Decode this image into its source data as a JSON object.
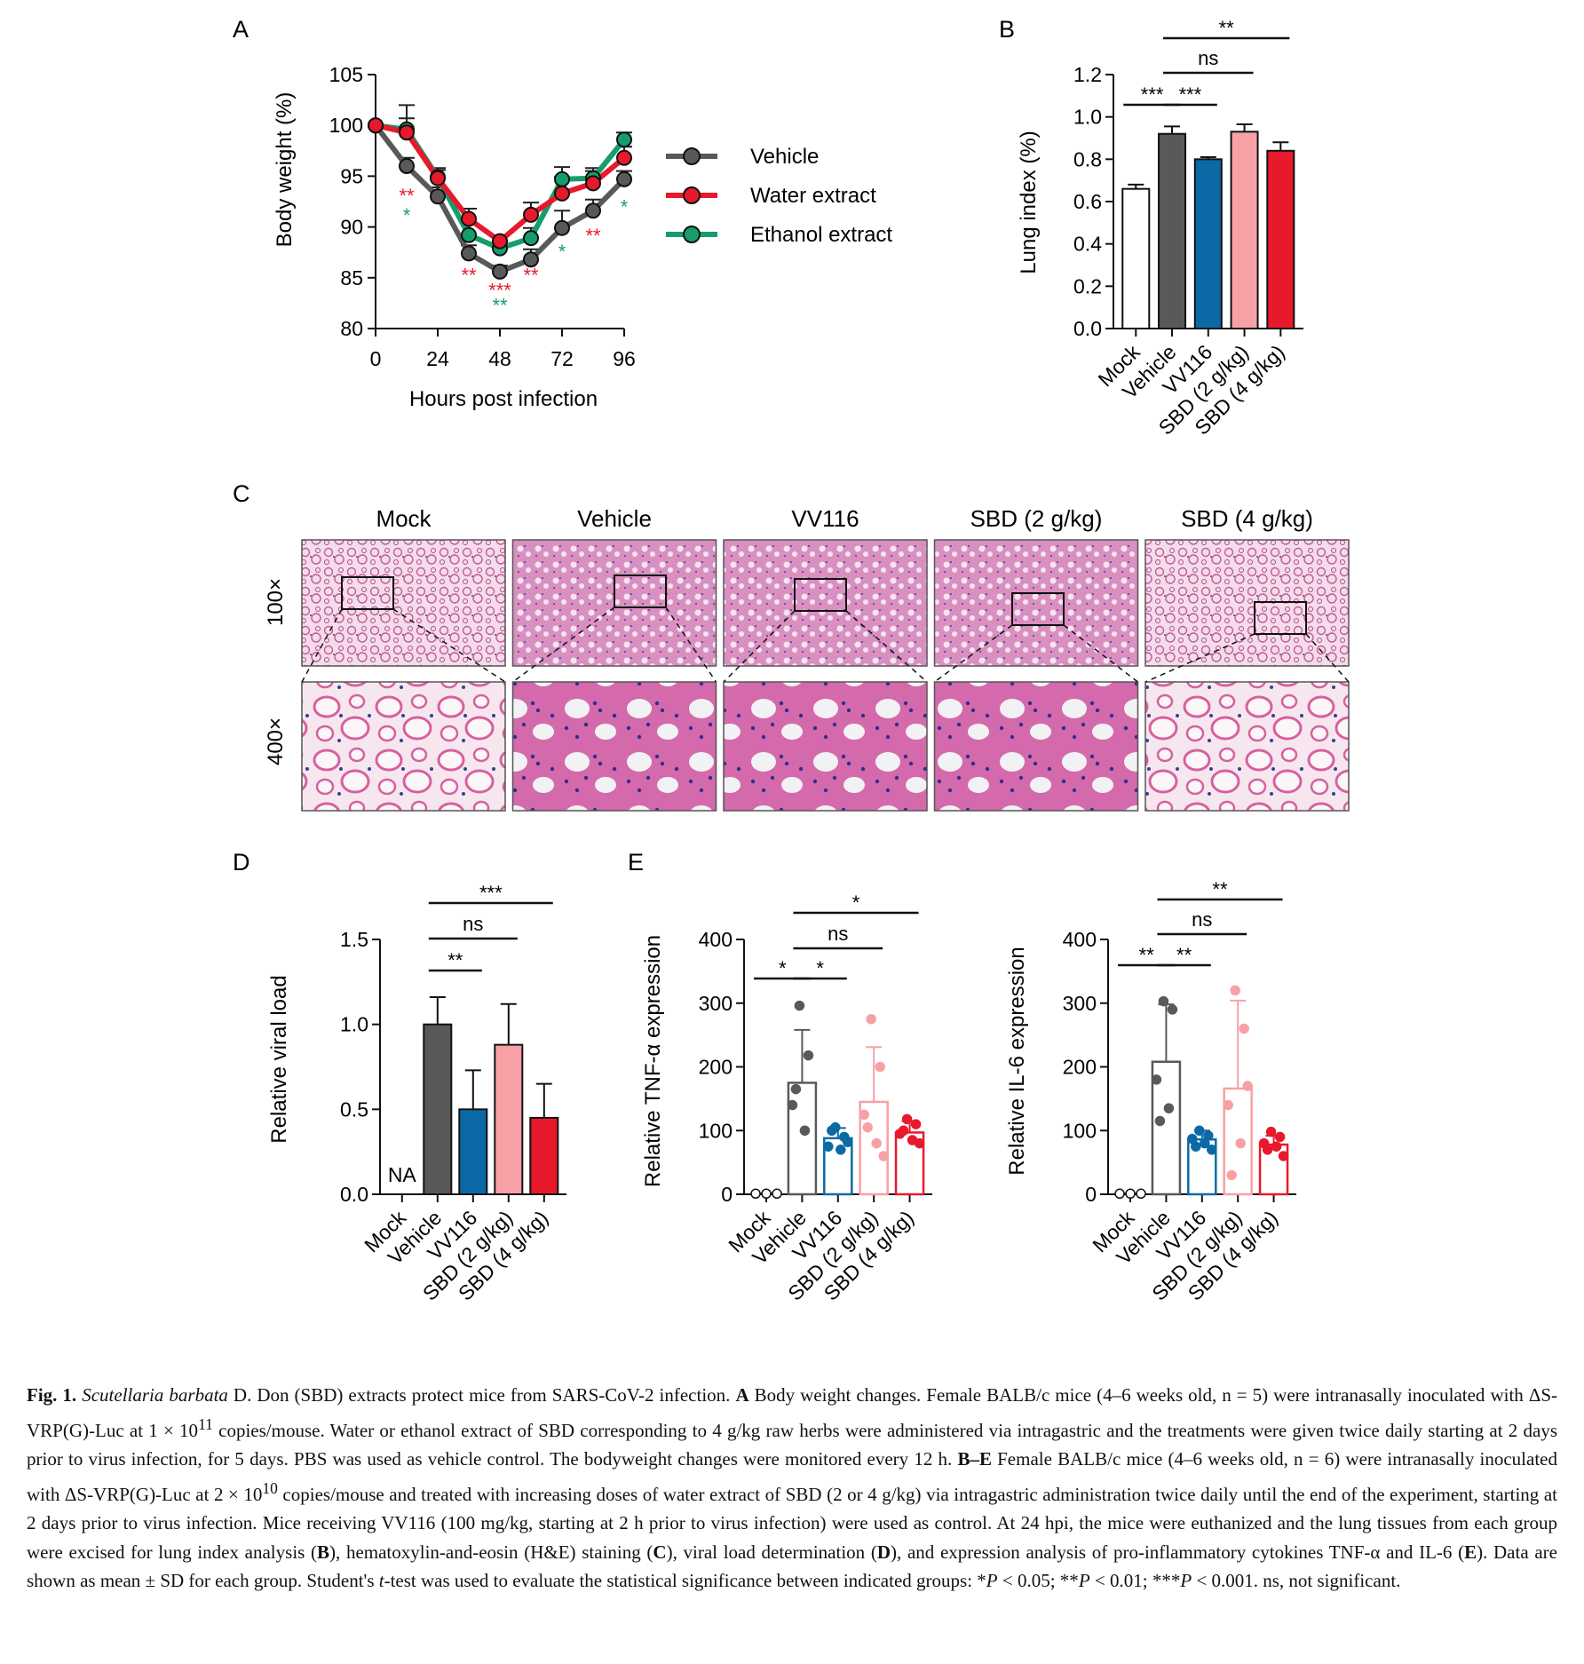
{
  "figure": {
    "panels": [
      {
        "letter": "A",
        "chart_data": {
          "type": "line",
          "xlabel": "Hours post infection",
          "ylabel": "Body weight (%)",
          "xlim": [
            0,
            96
          ],
          "ylim": [
            80,
            105
          ],
          "xticks": [
            0,
            24,
            48,
            72,
            96
          ],
          "yticks": [
            80,
            85,
            90,
            95,
            100,
            105
          ],
          "legend_position": "right",
          "x": [
            0,
            12,
            24,
            36,
            48,
            60,
            72,
            84,
            96
          ],
          "series": [
            {
              "name": "Vehicle",
              "color": "#595959",
              "values": [
                100,
                96.0,
                93.0,
                87.4,
                85.6,
                86.8,
                89.9,
                91.6,
                94.7
              ],
              "error": [
                0,
                0.8,
                0.9,
                0.8,
                0.6,
                1.0,
                1.7,
                1.1,
                0.8
              ]
            },
            {
              "name": "Water extract",
              "color": "#e8192c",
              "values": [
                100,
                99.3,
                94.8,
                90.8,
                88.6,
                91.2,
                93.3,
                94.3,
                96.8
              ],
              "error": [
                0,
                1.4,
                0.8,
                1.0,
                0.5,
                1.2,
                1.6,
                1.5,
                1.1
              ]
            },
            {
              "name": "Ethanol extract",
              "color": "#159e6b",
              "values": [
                100,
                99.6,
                94.9,
                89.2,
                87.9,
                88.9,
                94.7,
                94.8,
                98.6
              ],
              "error": [
                0,
                2.4,
                0.9,
                1.6,
                0.6,
                1.0,
                1.2,
                0.7,
                0.7
              ]
            }
          ],
          "annotations": [
            {
              "x": 12,
              "text": "**",
              "color": "#e8192c",
              "y_value": 92.4
            },
            {
              "x": 12,
              "text": "*",
              "color": "#159e6b",
              "y_value": 90.5
            },
            {
              "x": 36,
              "text": "**",
              "color": "#e8192c",
              "y_value": 84.6
            },
            {
              "x": 48,
              "text": "***",
              "color": "#e8192c",
              "y_value": 83.1
            },
            {
              "x": 48,
              "text": "**",
              "color": "#159e6b",
              "y_value": 81.6
            },
            {
              "x": 60,
              "text": "**",
              "color": "#e8192c",
              "y_value": 84.6
            },
            {
              "x": 72,
              "text": "*",
              "color": "#159e6b",
              "y_value": 86.9
            },
            {
              "x": 84,
              "text": "**",
              "color": "#e8192c",
              "y_value": 88.5
            },
            {
              "x": 96,
              "text": "*",
              "color": "#159e6b",
              "y_value": 91.3
            }
          ]
        }
      },
      {
        "letter": "B",
        "chart_data": {
          "type": "bar",
          "ylabel": "Lung index (%)",
          "ylim": [
            0,
            1.2
          ],
          "yticks": [
            "0.0",
            "0.2",
            "0.4",
            "0.6",
            "0.8",
            "1.0",
            "1.2"
          ],
          "categories": [
            "Mock",
            "Vehicle",
            "VV116",
            "SBD (2 g/kg)",
            "SBD (4 g/kg)"
          ],
          "values": [
            0.66,
            0.92,
            0.8,
            0.93,
            0.84
          ],
          "error": [
            0.02,
            0.035,
            0.01,
            0.035,
            0.04
          ],
          "bar_colors": [
            "#ffffff",
            "#595959",
            "#0b6aa6",
            "#f7a1a6",
            "#e8192c"
          ],
          "significance": [
            {
              "from": 0,
              "to": 1,
              "text": "***"
            },
            {
              "from": 1,
              "to": 2,
              "text": "***"
            },
            {
              "from": 1,
              "to": 3,
              "text": "ns"
            },
            {
              "from": 1,
              "to": 4,
              "text": "**"
            }
          ]
        }
      },
      {
        "letter": "C",
        "columns": [
          "Mock",
          "Vehicle",
          "VV116",
          "SBD (2 g/kg)",
          "SBD (4 g/kg)"
        ],
        "rows": [
          "100×",
          "400×"
        ]
      },
      {
        "letter": "D",
        "chart_data": {
          "type": "bar",
          "ylabel": "Relative viral load",
          "ylim": [
            0,
            1.5
          ],
          "yticks": [
            "0.0",
            "0.5",
            "1.0",
            "1.5"
          ],
          "categories": [
            "Mock",
            "Vehicle",
            "VV116",
            "SBD (2 g/kg)",
            "SBD (4 g/kg)"
          ],
          "values": [
            null,
            1.0,
            0.5,
            0.88,
            0.45
          ],
          "error": [
            0,
            0.16,
            0.23,
            0.24,
            0.2
          ],
          "bar_colors": [
            "#ffffff",
            "#595959",
            "#0b6aa6",
            "#f7a1a6",
            "#e8192c"
          ],
          "na_label": "NA",
          "significance": [
            {
              "from": 1,
              "to": 2,
              "text": "**"
            },
            {
              "from": 1,
              "to": 3,
              "text": "ns"
            },
            {
              "from": 1,
              "to": 4,
              "text": "***"
            }
          ]
        }
      },
      {
        "letter": "E",
        "chart_data": [
          {
            "type": "bar",
            "ylabel": "Relative TNF-α expression",
            "ylim": [
              0,
              400
            ],
            "yticks": [
              "0",
              "100",
              "200",
              "300",
              "400"
            ],
            "categories": [
              "Mock",
              "Vehicle",
              "VV116",
              "SBD (2 g/kg)",
              "SBD (4 g/kg)"
            ],
            "values": [
              1,
              175,
              88,
              145,
              97
            ],
            "error": [
              0,
              83,
              16,
              86,
              18
            ],
            "bar_colors": [
              "#111111",
              "#595959",
              "#0b6aa6",
              "#f7a1a6",
              "#e8192c"
            ],
            "points": [
              [
                1,
                1,
                1
              ],
              [
                296,
                218,
                140,
                100,
                165
              ],
              [
                105,
                90,
                75,
                70,
                100,
                82
              ],
              [
                275,
                200,
                125,
                80,
                105,
                60
              ],
              [
                118,
                110,
                95,
                85,
                100,
                80
              ]
            ],
            "significance": [
              {
                "from": 0,
                "to": 1,
                "text": "*"
              },
              {
                "from": 1,
                "to": 2,
                "text": "*"
              },
              {
                "from": 1,
                "to": 3,
                "text": "ns"
              },
              {
                "from": 1,
                "to": 4,
                "text": "*"
              }
            ]
          },
          {
            "type": "bar",
            "ylabel": "Relative IL-6 expression",
            "ylim": [
              0,
              400
            ],
            "yticks": [
              "0",
              "100",
              "200",
              "300",
              "400"
            ],
            "categories": [
              "Mock",
              "Vehicle",
              "VV116",
              "SBD (2 g/kg)",
              "SBD (4 g/kg)"
            ],
            "values": [
              1,
              208,
              86,
              166,
              78
            ],
            "error": [
              0,
              90,
              14,
              138,
              14
            ],
            "bar_colors": [
              "#111111",
              "#595959",
              "#0b6aa6",
              "#f7a1a6",
              "#e8192c"
            ],
            "points": [
              [
                1,
                1,
                1
              ],
              [
                303,
                290,
                180,
                135,
                115
              ],
              [
                100,
                92,
                87,
                80,
                75,
                70
              ],
              [
                320,
                260,
                140,
                80,
                30,
                170
              ],
              [
                98,
                90,
                80,
                75,
                70,
                60
              ]
            ],
            "significance": [
              {
                "from": 0,
                "to": 1,
                "text": "**"
              },
              {
                "from": 1,
                "to": 2,
                "text": "**"
              },
              {
                "from": 1,
                "to": 3,
                "text": "ns"
              },
              {
                "from": 1,
                "to": 4,
                "text": "**"
              }
            ]
          }
        ]
      }
    ]
  },
  "caption": {
    "label": "Fig. 1.",
    "species": "Scutellaria barbata",
    "p1": " D. Don (SBD) extracts protect mice from SARS-CoV-2 infection. ",
    "a": "A",
    "p2": " Body weight changes. Female BALB/c mice (4–6 weeks old, n = 5) were intranasally inoculated with ΔS-VRP(G)-Luc at 1 × 10",
    "exp1": "11",
    "p3": " copies/mouse. Water or ethanol extract of SBD corresponding to 4 g/kg raw herbs were administered via intragastric and the treatments were given twice daily starting at 2 days prior to virus infection, for 5 days. PBS was used as vehicle control. The bodyweight changes were monitored every 12 h. ",
    "be": "B–E",
    "p4": " Female BALB/c mice (4–6 weeks old, n = 6) were intranasally inoculated with ΔS-VRP(G)-Luc at 2 × 10",
    "exp2": "10",
    "p5": " copies/mouse and treated with increasing doses of water extract of SBD (2 or 4 g/kg) via intragastric administration twice daily until the end of the experiment, starting at 2 days prior to virus infection. Mice receiving VV116 (100 mg/kg, starting at 2 h prior to virus infection) were used as control. At 24 hpi, the mice were euthanized and the lung tissues from each group were excised for lung index analysis (",
    "b": "B",
    "p6": "), hematoxylin-and-eosin (H&E) staining (",
    "c": "C",
    "p7": "), viral load determination (",
    "d": "D",
    "p8": "), and expression analysis of pro-inflammatory cytokines TNF-α and IL-6 (",
    "e": "E",
    "p9": "). Data are shown as mean ± SD for each group. Student's ",
    "t": "t",
    "p10": "-test was used to evaluate the statistical significance between indicated groups: *",
    "P1": "P",
    "p11": " < 0.05; **",
    "P2": "P",
    "p12": " < 0.01; ***",
    "P3": "P",
    "p13": " < 0.001. ns, not significant."
  }
}
